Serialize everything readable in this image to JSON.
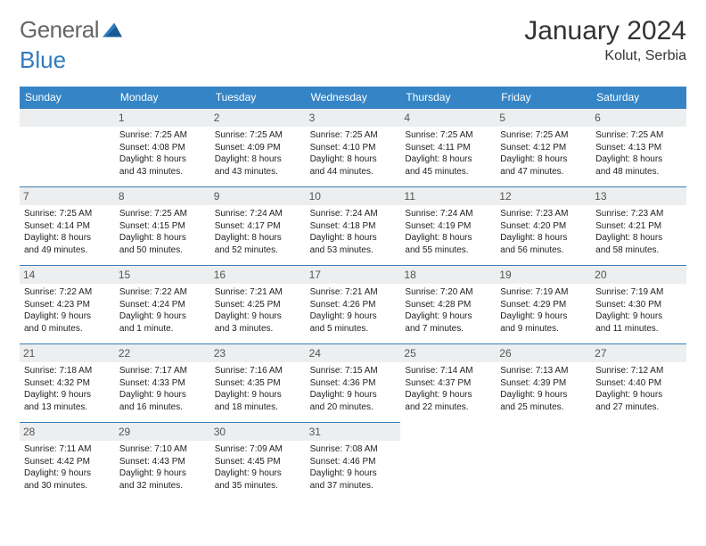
{
  "brand": {
    "part1": "General",
    "part2": "Blue"
  },
  "title": "January 2024",
  "location": "Kolut, Serbia",
  "colors": {
    "header_bg": "#3585c6",
    "header_text": "#ffffff",
    "cell_border": "#3a7db8",
    "daynum_bg": "#eceeef",
    "text": "#333333"
  },
  "weekdays": [
    "Sunday",
    "Monday",
    "Tuesday",
    "Wednesday",
    "Thursday",
    "Friday",
    "Saturday"
  ],
  "first_weekday_offset": 1,
  "days": [
    {
      "n": "1",
      "sr": "Sunrise: 7:25 AM",
      "ss": "Sunset: 4:08 PM",
      "d1": "Daylight: 8 hours",
      "d2": "and 43 minutes."
    },
    {
      "n": "2",
      "sr": "Sunrise: 7:25 AM",
      "ss": "Sunset: 4:09 PM",
      "d1": "Daylight: 8 hours",
      "d2": "and 43 minutes."
    },
    {
      "n": "3",
      "sr": "Sunrise: 7:25 AM",
      "ss": "Sunset: 4:10 PM",
      "d1": "Daylight: 8 hours",
      "d2": "and 44 minutes."
    },
    {
      "n": "4",
      "sr": "Sunrise: 7:25 AM",
      "ss": "Sunset: 4:11 PM",
      "d1": "Daylight: 8 hours",
      "d2": "and 45 minutes."
    },
    {
      "n": "5",
      "sr": "Sunrise: 7:25 AM",
      "ss": "Sunset: 4:12 PM",
      "d1": "Daylight: 8 hours",
      "d2": "and 47 minutes."
    },
    {
      "n": "6",
      "sr": "Sunrise: 7:25 AM",
      "ss": "Sunset: 4:13 PM",
      "d1": "Daylight: 8 hours",
      "d2": "and 48 minutes."
    },
    {
      "n": "7",
      "sr": "Sunrise: 7:25 AM",
      "ss": "Sunset: 4:14 PM",
      "d1": "Daylight: 8 hours",
      "d2": "and 49 minutes."
    },
    {
      "n": "8",
      "sr": "Sunrise: 7:25 AM",
      "ss": "Sunset: 4:15 PM",
      "d1": "Daylight: 8 hours",
      "d2": "and 50 minutes."
    },
    {
      "n": "9",
      "sr": "Sunrise: 7:24 AM",
      "ss": "Sunset: 4:17 PM",
      "d1": "Daylight: 8 hours",
      "d2": "and 52 minutes."
    },
    {
      "n": "10",
      "sr": "Sunrise: 7:24 AM",
      "ss": "Sunset: 4:18 PM",
      "d1": "Daylight: 8 hours",
      "d2": "and 53 minutes."
    },
    {
      "n": "11",
      "sr": "Sunrise: 7:24 AM",
      "ss": "Sunset: 4:19 PM",
      "d1": "Daylight: 8 hours",
      "d2": "and 55 minutes."
    },
    {
      "n": "12",
      "sr": "Sunrise: 7:23 AM",
      "ss": "Sunset: 4:20 PM",
      "d1": "Daylight: 8 hours",
      "d2": "and 56 minutes."
    },
    {
      "n": "13",
      "sr": "Sunrise: 7:23 AM",
      "ss": "Sunset: 4:21 PM",
      "d1": "Daylight: 8 hours",
      "d2": "and 58 minutes."
    },
    {
      "n": "14",
      "sr": "Sunrise: 7:22 AM",
      "ss": "Sunset: 4:23 PM",
      "d1": "Daylight: 9 hours",
      "d2": "and 0 minutes."
    },
    {
      "n": "15",
      "sr": "Sunrise: 7:22 AM",
      "ss": "Sunset: 4:24 PM",
      "d1": "Daylight: 9 hours",
      "d2": "and 1 minute."
    },
    {
      "n": "16",
      "sr": "Sunrise: 7:21 AM",
      "ss": "Sunset: 4:25 PM",
      "d1": "Daylight: 9 hours",
      "d2": "and 3 minutes."
    },
    {
      "n": "17",
      "sr": "Sunrise: 7:21 AM",
      "ss": "Sunset: 4:26 PM",
      "d1": "Daylight: 9 hours",
      "d2": "and 5 minutes."
    },
    {
      "n": "18",
      "sr": "Sunrise: 7:20 AM",
      "ss": "Sunset: 4:28 PM",
      "d1": "Daylight: 9 hours",
      "d2": "and 7 minutes."
    },
    {
      "n": "19",
      "sr": "Sunrise: 7:19 AM",
      "ss": "Sunset: 4:29 PM",
      "d1": "Daylight: 9 hours",
      "d2": "and 9 minutes."
    },
    {
      "n": "20",
      "sr": "Sunrise: 7:19 AM",
      "ss": "Sunset: 4:30 PM",
      "d1": "Daylight: 9 hours",
      "d2": "and 11 minutes."
    },
    {
      "n": "21",
      "sr": "Sunrise: 7:18 AM",
      "ss": "Sunset: 4:32 PM",
      "d1": "Daylight: 9 hours",
      "d2": "and 13 minutes."
    },
    {
      "n": "22",
      "sr": "Sunrise: 7:17 AM",
      "ss": "Sunset: 4:33 PM",
      "d1": "Daylight: 9 hours",
      "d2": "and 16 minutes."
    },
    {
      "n": "23",
      "sr": "Sunrise: 7:16 AM",
      "ss": "Sunset: 4:35 PM",
      "d1": "Daylight: 9 hours",
      "d2": "and 18 minutes."
    },
    {
      "n": "24",
      "sr": "Sunrise: 7:15 AM",
      "ss": "Sunset: 4:36 PM",
      "d1": "Daylight: 9 hours",
      "d2": "and 20 minutes."
    },
    {
      "n": "25",
      "sr": "Sunrise: 7:14 AM",
      "ss": "Sunset: 4:37 PM",
      "d1": "Daylight: 9 hours",
      "d2": "and 22 minutes."
    },
    {
      "n": "26",
      "sr": "Sunrise: 7:13 AM",
      "ss": "Sunset: 4:39 PM",
      "d1": "Daylight: 9 hours",
      "d2": "and 25 minutes."
    },
    {
      "n": "27",
      "sr": "Sunrise: 7:12 AM",
      "ss": "Sunset: 4:40 PM",
      "d1": "Daylight: 9 hours",
      "d2": "and 27 minutes."
    },
    {
      "n": "28",
      "sr": "Sunrise: 7:11 AM",
      "ss": "Sunset: 4:42 PM",
      "d1": "Daylight: 9 hours",
      "d2": "and 30 minutes."
    },
    {
      "n": "29",
      "sr": "Sunrise: 7:10 AM",
      "ss": "Sunset: 4:43 PM",
      "d1": "Daylight: 9 hours",
      "d2": "and 32 minutes."
    },
    {
      "n": "30",
      "sr": "Sunrise: 7:09 AM",
      "ss": "Sunset: 4:45 PM",
      "d1": "Daylight: 9 hours",
      "d2": "and 35 minutes."
    },
    {
      "n": "31",
      "sr": "Sunrise: 7:08 AM",
      "ss": "Sunset: 4:46 PM",
      "d1": "Daylight: 9 hours",
      "d2": "and 37 minutes."
    }
  ]
}
